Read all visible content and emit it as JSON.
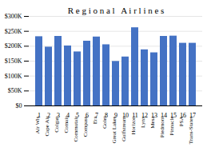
{
  "chart_data": {
    "type": "bar",
    "title": "R e g i o n a l   A i r l i n e s",
    "categories": [
      "Air Wis",
      "Cape Air",
      "Colgan",
      "Comair",
      "Commutair",
      "Compass",
      "Era",
      "Golet",
      "Great Lakes",
      "Gulfstream",
      "Horizon",
      "Lynx",
      "Mesa",
      "Piedmont",
      "Pinnacle",
      "PSA",
      "Trans-States"
    ],
    "xtick_labels": [
      "1",
      "2",
      "3",
      "4",
      "5",
      "6",
      "7",
      "8",
      "9",
      "10",
      "11",
      "12",
      "13",
      "14",
      "15",
      "16",
      "17"
    ],
    "values": [
      232000,
      197000,
      233000,
      201000,
      181000,
      217000,
      231000,
      205000,
      149000,
      164000,
      262000,
      188000,
      178000,
      233000,
      234000,
      210000,
      210000
    ],
    "color": "#4472C4",
    "ylim": [
      0,
      300000
    ],
    "yticks": [
      {
        "value": 0,
        "label": "$0"
      },
      {
        "value": 50000,
        "label": "$50K"
      },
      {
        "value": 100000,
        "label": "$100K"
      },
      {
        "value": 150000,
        "label": "$150K"
      },
      {
        "value": 200000,
        "label": "$200K"
      },
      {
        "value": 250000,
        "label": "$250K"
      },
      {
        "value": 300000,
        "label": "$300K"
      }
    ],
    "grid": true
  }
}
